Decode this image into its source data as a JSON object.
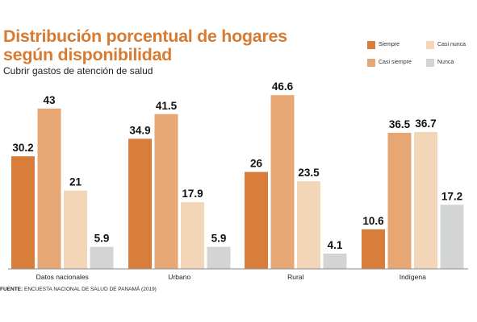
{
  "title": "Distribución porcentual de hogares según disponibilidad",
  "subtitle": "Cubrir gastos de atención de salud",
  "footer": {
    "label": "FUENTE:",
    "text": " ENCUESTA NACIONAL DE SALUD DE PANAMÁ (2019)"
  },
  "colors": {
    "Siempre": "#d97e3a",
    "Casi siempre": "#e6a774",
    "Casi nunca": "#f3d5b7",
    "Nunca": "#d3d4d5"
  },
  "legend": [
    {
      "label": "Siempre"
    },
    {
      "label": "Casi nunca"
    },
    {
      "label": "Casi siempre"
    },
    {
      "label": "Nunca"
    }
  ],
  "chart_data": {
    "type": "bar",
    "categories": [
      "Datos nacionales",
      "Urbano",
      "Rural",
      "Indígena"
    ],
    "series": [
      {
        "name": "Siempre",
        "values": [
          30.2,
          34.9,
          26,
          10.6
        ]
      },
      {
        "name": "Casi siempre",
        "values": [
          43,
          41.5,
          46.6,
          36.5
        ]
      },
      {
        "name": "Casi nunca",
        "values": [
          21,
          17.9,
          23.5,
          36.7
        ]
      },
      {
        "name": "Nunca",
        "values": [
          5.9,
          5.9,
          4.1,
          17.2
        ]
      }
    ],
    "title": "Distribución porcentual de hogares según disponibilidad",
    "subtitle": "Cubrir gastos de atención de salud",
    "xlabel": "",
    "ylabel": "",
    "ylim": [
      0,
      48
    ],
    "grid": false,
    "legend_position": "top-right"
  }
}
